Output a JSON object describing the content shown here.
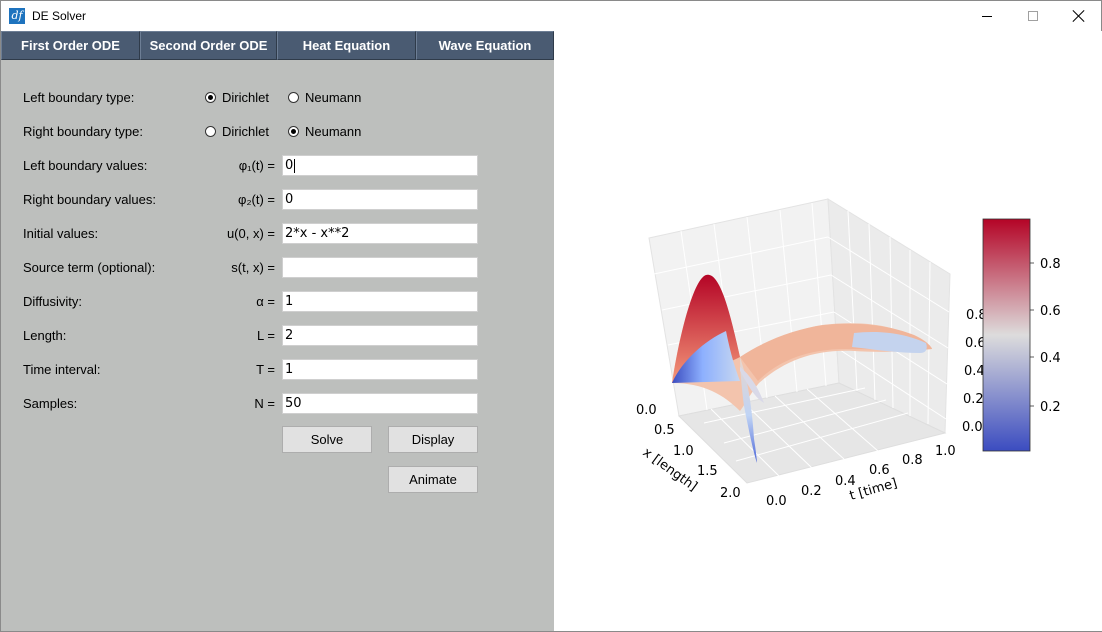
{
  "window": {
    "title": "DE Solver",
    "app_icon": "df"
  },
  "tabs": [
    {
      "label": "First Order ODE"
    },
    {
      "label": "Second Order ODE"
    },
    {
      "label": "Heat Equation"
    },
    {
      "label": "Wave Equation"
    }
  ],
  "form": {
    "left_boundary_type": {
      "label": "Left boundary type:",
      "options": [
        "Dirichlet",
        "Neumann"
      ],
      "selected": "Dirichlet"
    },
    "right_boundary_type": {
      "label": "Right boundary type:",
      "options": [
        "Dirichlet",
        "Neumann"
      ],
      "selected": "Neumann"
    },
    "left_boundary_values": {
      "label": "Left boundary values:",
      "symbol": "φ₁(t) =",
      "value": "0"
    },
    "right_boundary_values": {
      "label": "Right boundary values:",
      "symbol": "φ₂(t) =",
      "value": "0"
    },
    "initial_values": {
      "label": "Initial values:",
      "symbol": "u(0, x) =",
      "value": "2*x - x**2"
    },
    "source_term": {
      "label": "Source term (optional):",
      "symbol": "s(t, x) =",
      "value": ""
    },
    "diffusivity": {
      "label": "Diffusivity:",
      "symbol": "α =",
      "value": "1"
    },
    "length": {
      "label": "Length:",
      "symbol": "L =",
      "value": "2"
    },
    "time_interval": {
      "label": "Time interval:",
      "symbol": "T =",
      "value": "1"
    },
    "samples": {
      "label": "Samples:",
      "symbol": "N =",
      "value": "50"
    }
  },
  "buttons": {
    "solve": "Solve",
    "display": "Display",
    "animate": "Animate"
  },
  "chart_data": {
    "type": "surface3d",
    "xlabel": "x [length]",
    "ylabel": "t [time]",
    "x_ticks": [
      "0.0",
      "0.5",
      "1.0",
      "1.5",
      "2.0"
    ],
    "t_ticks": [
      "0.0",
      "0.2",
      "0.4",
      "0.6",
      "0.8",
      "1.0"
    ],
    "z_ticks": [
      "0.0",
      "0.2",
      "0.4",
      "0.6",
      "0.8"
    ],
    "colorbar_ticks": [
      "0.2",
      "0.4",
      "0.6",
      "0.8"
    ],
    "colormap": "coolwarm",
    "colormap_colors": [
      "#3b4cc0",
      "#dddcdc",
      "#b40426"
    ]
  }
}
